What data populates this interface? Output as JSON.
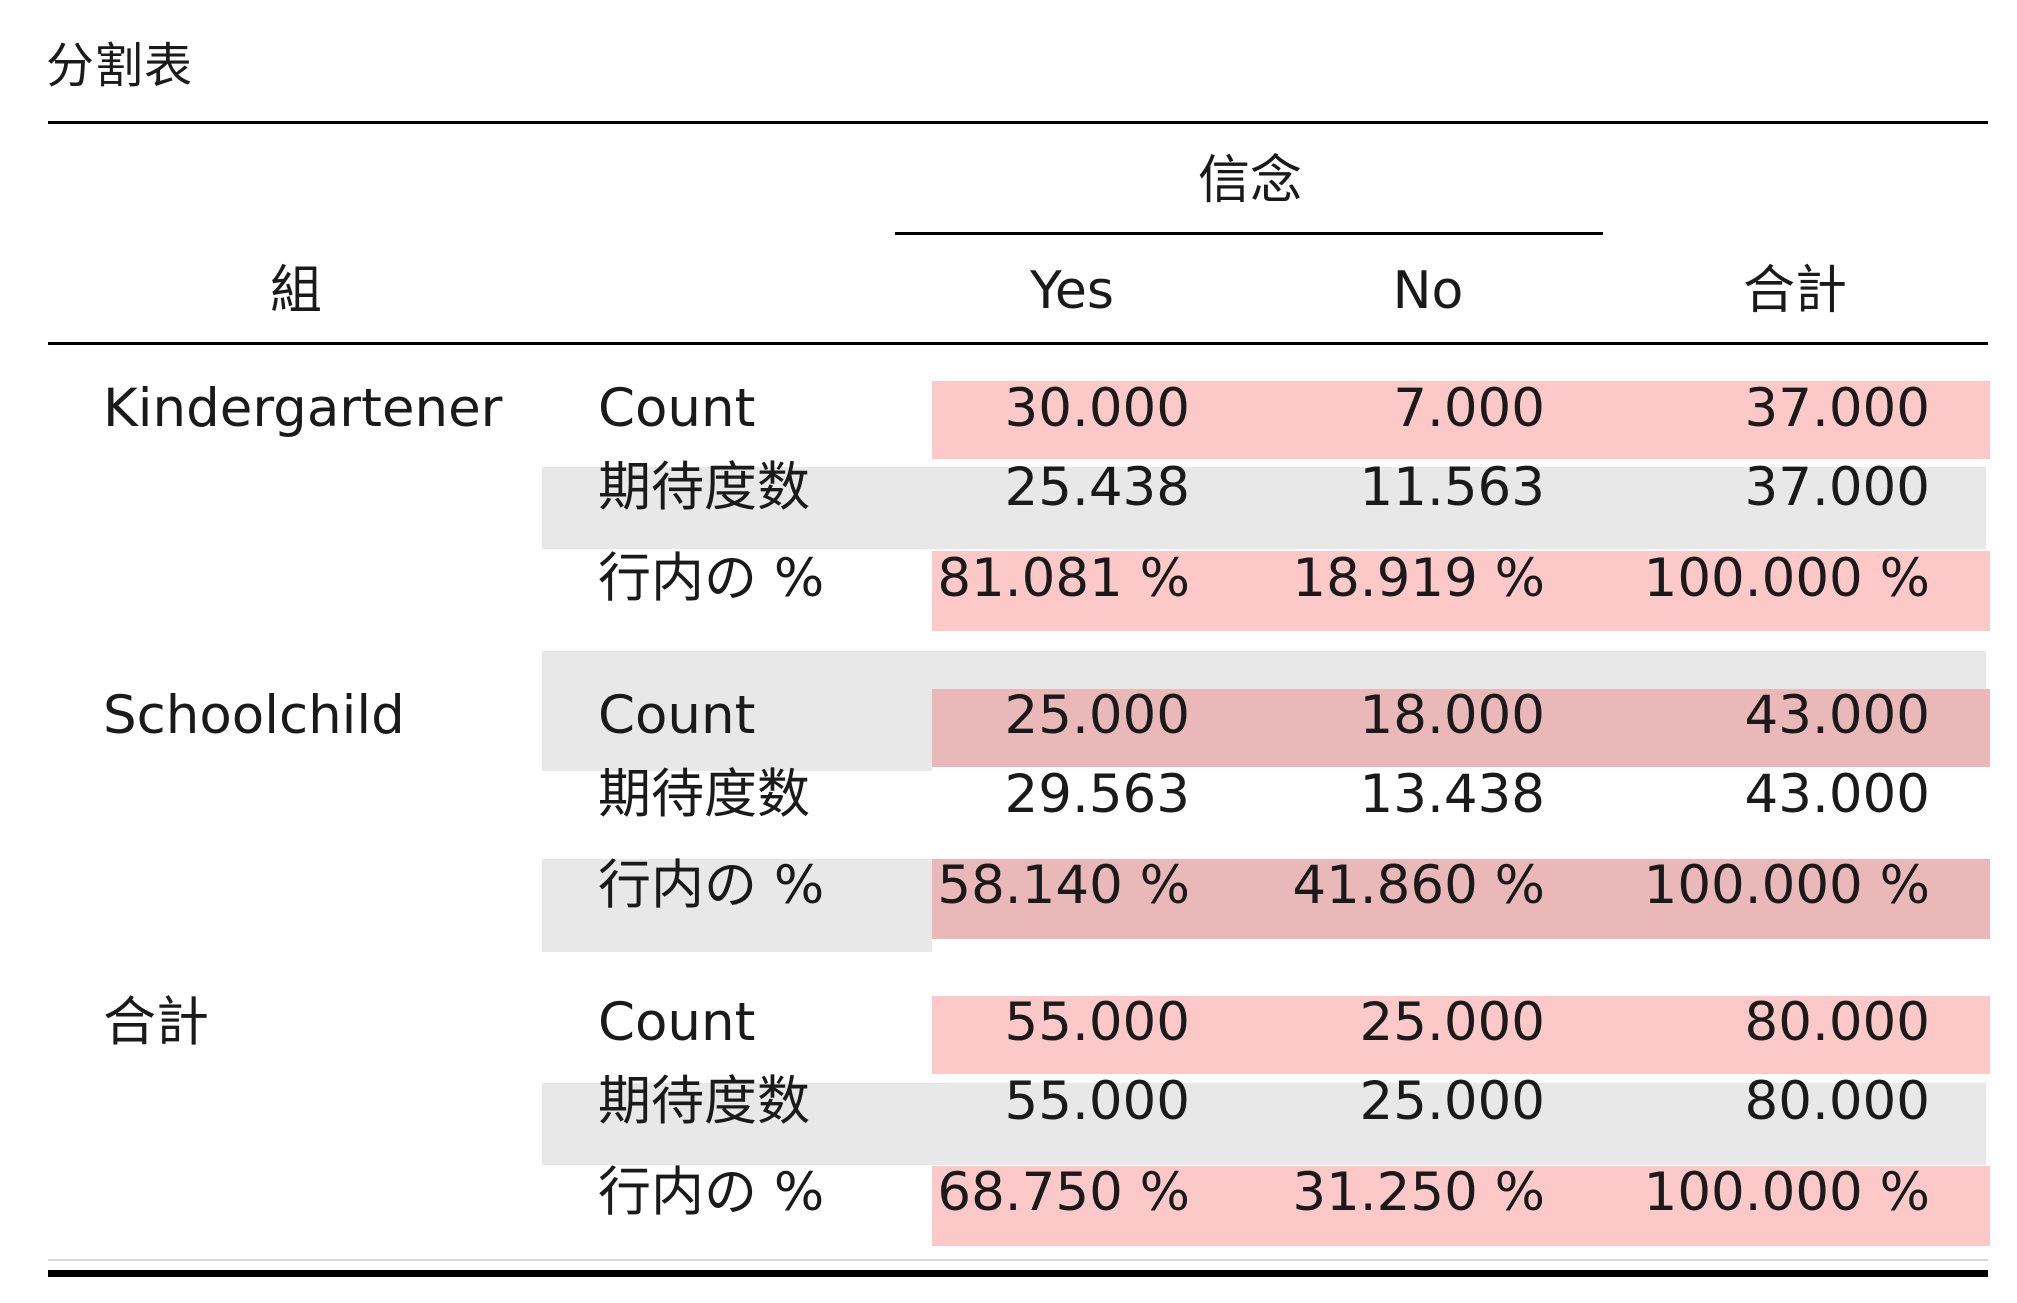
{
  "title": "分割表",
  "header": {
    "row_var": "組",
    "col_group": "信念",
    "columns": [
      "Yes",
      "No",
      "合計"
    ]
  },
  "stat_labels": [
    "Count",
    "期待度数",
    "行内の %"
  ],
  "groups": [
    {
      "name": "Kindergartener",
      "rows": [
        [
          "30.000",
          "7.000",
          "37.000"
        ],
        [
          "25.438",
          "11.563",
          "37.000"
        ],
        [
          "81.081 %",
          "18.919 %",
          "100.000 %"
        ]
      ]
    },
    {
      "name": "Schoolchild",
      "rows": [
        [
          "25.000",
          "18.000",
          "43.000"
        ],
        [
          "29.563",
          "13.438",
          "43.000"
        ],
        [
          "58.140 %",
          "41.860 %",
          "100.000 %"
        ]
      ]
    },
    {
      "name": "合計",
      "rows": [
        [
          "55.000",
          "25.000",
          "80.000"
        ],
        [
          "55.000",
          "25.000",
          "80.000"
        ],
        [
          "68.750 %",
          "31.250 %",
          "100.000 %"
        ]
      ]
    }
  ],
  "colors": {
    "pink": "#fcc8c8",
    "pink_dark": "#eab8b8",
    "gray": "#e8e8e8"
  }
}
